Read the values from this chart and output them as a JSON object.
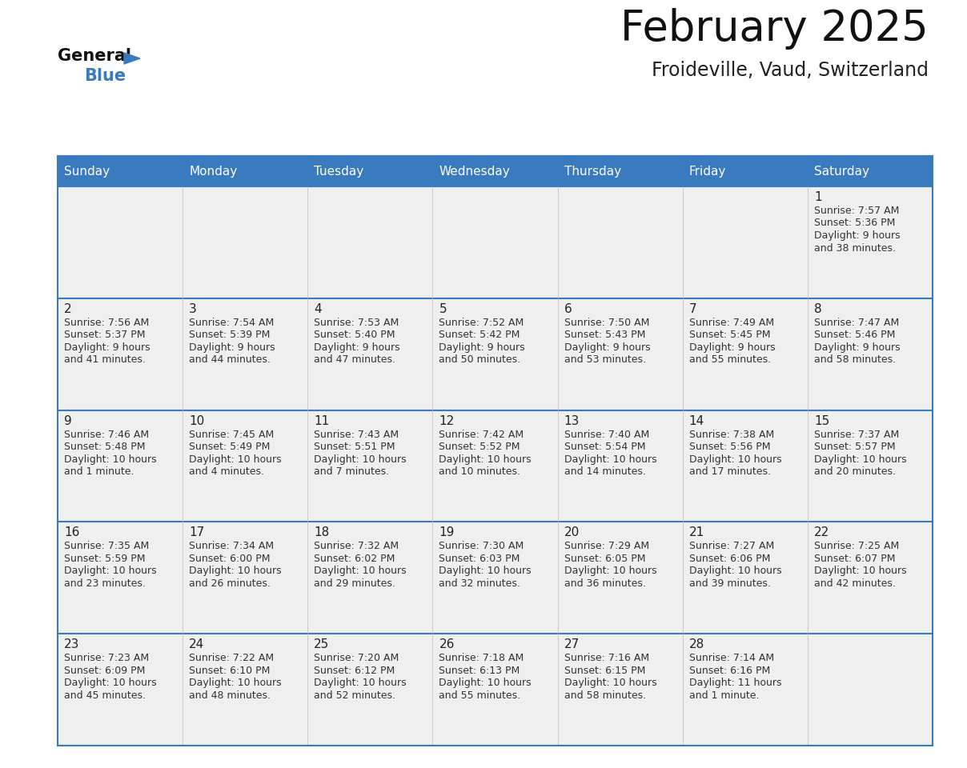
{
  "title": "February 2025",
  "subtitle": "Froideville, Vaud, Switzerland",
  "header_bg": "#3a7bbf",
  "header_text": "#ffffff",
  "day_names": [
    "Sunday",
    "Monday",
    "Tuesday",
    "Wednesday",
    "Thursday",
    "Friday",
    "Saturday"
  ],
  "cell_bg": "#eeeeee",
  "row0_top_bg": "#e8e8e8",
  "divider_color": "#3a7bbf",
  "title_color": "#111111",
  "subtitle_color": "#222222",
  "text_color": "#333333",
  "days": [
    {
      "date": 1,
      "col": 6,
      "row": 0,
      "sunrise": "7:57 AM",
      "sunset": "5:36 PM",
      "daylight_hours": "9",
      "daylight_mins": "38 minutes."
    },
    {
      "date": 2,
      "col": 0,
      "row": 1,
      "sunrise": "7:56 AM",
      "sunset": "5:37 PM",
      "daylight_hours": "9",
      "daylight_mins": "41 minutes."
    },
    {
      "date": 3,
      "col": 1,
      "row": 1,
      "sunrise": "7:54 AM",
      "sunset": "5:39 PM",
      "daylight_hours": "9",
      "daylight_mins": "44 minutes."
    },
    {
      "date": 4,
      "col": 2,
      "row": 1,
      "sunrise": "7:53 AM",
      "sunset": "5:40 PM",
      "daylight_hours": "9",
      "daylight_mins": "47 minutes."
    },
    {
      "date": 5,
      "col": 3,
      "row": 1,
      "sunrise": "7:52 AM",
      "sunset": "5:42 PM",
      "daylight_hours": "9",
      "daylight_mins": "50 minutes."
    },
    {
      "date": 6,
      "col": 4,
      "row": 1,
      "sunrise": "7:50 AM",
      "sunset": "5:43 PM",
      "daylight_hours": "9",
      "daylight_mins": "53 minutes."
    },
    {
      "date": 7,
      "col": 5,
      "row": 1,
      "sunrise": "7:49 AM",
      "sunset": "5:45 PM",
      "daylight_hours": "9",
      "daylight_mins": "55 minutes."
    },
    {
      "date": 8,
      "col": 6,
      "row": 1,
      "sunrise": "7:47 AM",
      "sunset": "5:46 PM",
      "daylight_hours": "9",
      "daylight_mins": "58 minutes."
    },
    {
      "date": 9,
      "col": 0,
      "row": 2,
      "sunrise": "7:46 AM",
      "sunset": "5:48 PM",
      "daylight_hours": "10",
      "daylight_mins": "1 minute."
    },
    {
      "date": 10,
      "col": 1,
      "row": 2,
      "sunrise": "7:45 AM",
      "sunset": "5:49 PM",
      "daylight_hours": "10",
      "daylight_mins": "4 minutes."
    },
    {
      "date": 11,
      "col": 2,
      "row": 2,
      "sunrise": "7:43 AM",
      "sunset": "5:51 PM",
      "daylight_hours": "10",
      "daylight_mins": "7 minutes."
    },
    {
      "date": 12,
      "col": 3,
      "row": 2,
      "sunrise": "7:42 AM",
      "sunset": "5:52 PM",
      "daylight_hours": "10",
      "daylight_mins": "10 minutes."
    },
    {
      "date": 13,
      "col": 4,
      "row": 2,
      "sunrise": "7:40 AM",
      "sunset": "5:54 PM",
      "daylight_hours": "10",
      "daylight_mins": "14 minutes."
    },
    {
      "date": 14,
      "col": 5,
      "row": 2,
      "sunrise": "7:38 AM",
      "sunset": "5:56 PM",
      "daylight_hours": "10",
      "daylight_mins": "17 minutes."
    },
    {
      "date": 15,
      "col": 6,
      "row": 2,
      "sunrise": "7:37 AM",
      "sunset": "5:57 PM",
      "daylight_hours": "10",
      "daylight_mins": "20 minutes."
    },
    {
      "date": 16,
      "col": 0,
      "row": 3,
      "sunrise": "7:35 AM",
      "sunset": "5:59 PM",
      "daylight_hours": "10",
      "daylight_mins": "23 minutes."
    },
    {
      "date": 17,
      "col": 1,
      "row": 3,
      "sunrise": "7:34 AM",
      "sunset": "6:00 PM",
      "daylight_hours": "10",
      "daylight_mins": "26 minutes."
    },
    {
      "date": 18,
      "col": 2,
      "row": 3,
      "sunrise": "7:32 AM",
      "sunset": "6:02 PM",
      "daylight_hours": "10",
      "daylight_mins": "29 minutes."
    },
    {
      "date": 19,
      "col": 3,
      "row": 3,
      "sunrise": "7:30 AM",
      "sunset": "6:03 PM",
      "daylight_hours": "10",
      "daylight_mins": "32 minutes."
    },
    {
      "date": 20,
      "col": 4,
      "row": 3,
      "sunrise": "7:29 AM",
      "sunset": "6:05 PM",
      "daylight_hours": "10",
      "daylight_mins": "36 minutes."
    },
    {
      "date": 21,
      "col": 5,
      "row": 3,
      "sunrise": "7:27 AM",
      "sunset": "6:06 PM",
      "daylight_hours": "10",
      "daylight_mins": "39 minutes."
    },
    {
      "date": 22,
      "col": 6,
      "row": 3,
      "sunrise": "7:25 AM",
      "sunset": "6:07 PM",
      "daylight_hours": "10",
      "daylight_mins": "42 minutes."
    },
    {
      "date": 23,
      "col": 0,
      "row": 4,
      "sunrise": "7:23 AM",
      "sunset": "6:09 PM",
      "daylight_hours": "10",
      "daylight_mins": "45 minutes."
    },
    {
      "date": 24,
      "col": 1,
      "row": 4,
      "sunrise": "7:22 AM",
      "sunset": "6:10 PM",
      "daylight_hours": "10",
      "daylight_mins": "48 minutes."
    },
    {
      "date": 25,
      "col": 2,
      "row": 4,
      "sunrise": "7:20 AM",
      "sunset": "6:12 PM",
      "daylight_hours": "10",
      "daylight_mins": "52 minutes."
    },
    {
      "date": 26,
      "col": 3,
      "row": 4,
      "sunrise": "7:18 AM",
      "sunset": "6:13 PM",
      "daylight_hours": "10",
      "daylight_mins": "55 minutes."
    },
    {
      "date": 27,
      "col": 4,
      "row": 4,
      "sunrise": "7:16 AM",
      "sunset": "6:15 PM",
      "daylight_hours": "10",
      "daylight_mins": "58 minutes."
    },
    {
      "date": 28,
      "col": 5,
      "row": 4,
      "sunrise": "7:14 AM",
      "sunset": "6:16 PM",
      "daylight_hours": "11",
      "daylight_mins": "1 minute."
    }
  ]
}
